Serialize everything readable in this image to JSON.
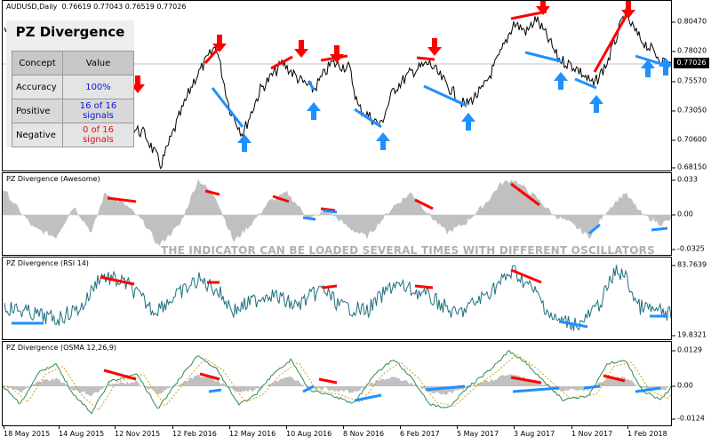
{
  "main": {
    "title": "AUDUSD,Daily",
    "ohlc": "0.76619 0.77043 0.76519 0.77026",
    "price_tag": "0.77026",
    "y_ticks": [
      "0.80470",
      "0.78020",
      "0.75570",
      "0.73050",
      "0.70600",
      "0.68150"
    ],
    "y_range": [
      0.6775,
      0.819
    ]
  },
  "info_panel": {
    "title": "PZ Divergence",
    "headers": [
      "Concept",
      "Value"
    ],
    "rows": [
      {
        "label": "Accuracy",
        "value": "100%",
        "color": "#1010e0"
      },
      {
        "label": "Positive",
        "value": "16 of 16 signals",
        "color": "#1010e0"
      },
      {
        "label": "Negative",
        "value": "0 of 16 signals",
        "color": "#e01010"
      }
    ]
  },
  "awesome": {
    "title": "PZ Divergence (Awesome)",
    "y_ticks": [
      "0.033",
      "0.00",
      "-0.0325"
    ],
    "banner": "THE INDICATOR CAN BE LOADED SEVERAL TIMES WITH DIFFERENT OSCILLATORS"
  },
  "rsi": {
    "title": "PZ Divergence (RSI 14)",
    "y_ticks": [
      "83.7639",
      "19.8321"
    ]
  },
  "osma": {
    "title": "PZ Divergence (OSMA 12,26,9)",
    "y_ticks": [
      "0.0129",
      "0.00",
      "-0.0124"
    ]
  },
  "x_axis": {
    "labels": [
      "18 May 2015",
      "14 Aug 2015",
      "12 Nov 2015",
      "12 Feb 2016",
      "12 May 2016",
      "10 Aug 2016",
      "8 Nov 2016",
      "6 Feb 2017",
      "5 May 2017",
      "3 Aug 2017",
      "1 Nov 2017",
      "1 Feb 2018"
    ]
  },
  "colors": {
    "bearish": "#ff0000",
    "bullish": "#1e90ff",
    "price": "#000000",
    "histogram": "#c0c0c0",
    "rsi_line": "#1f6f7f",
    "osma_fast": "#2e8b57",
    "osma_slow": "#d4a017"
  },
  "signals": {
    "bearish_arrows_count": 9,
    "bullish_arrows_count": 9
  }
}
